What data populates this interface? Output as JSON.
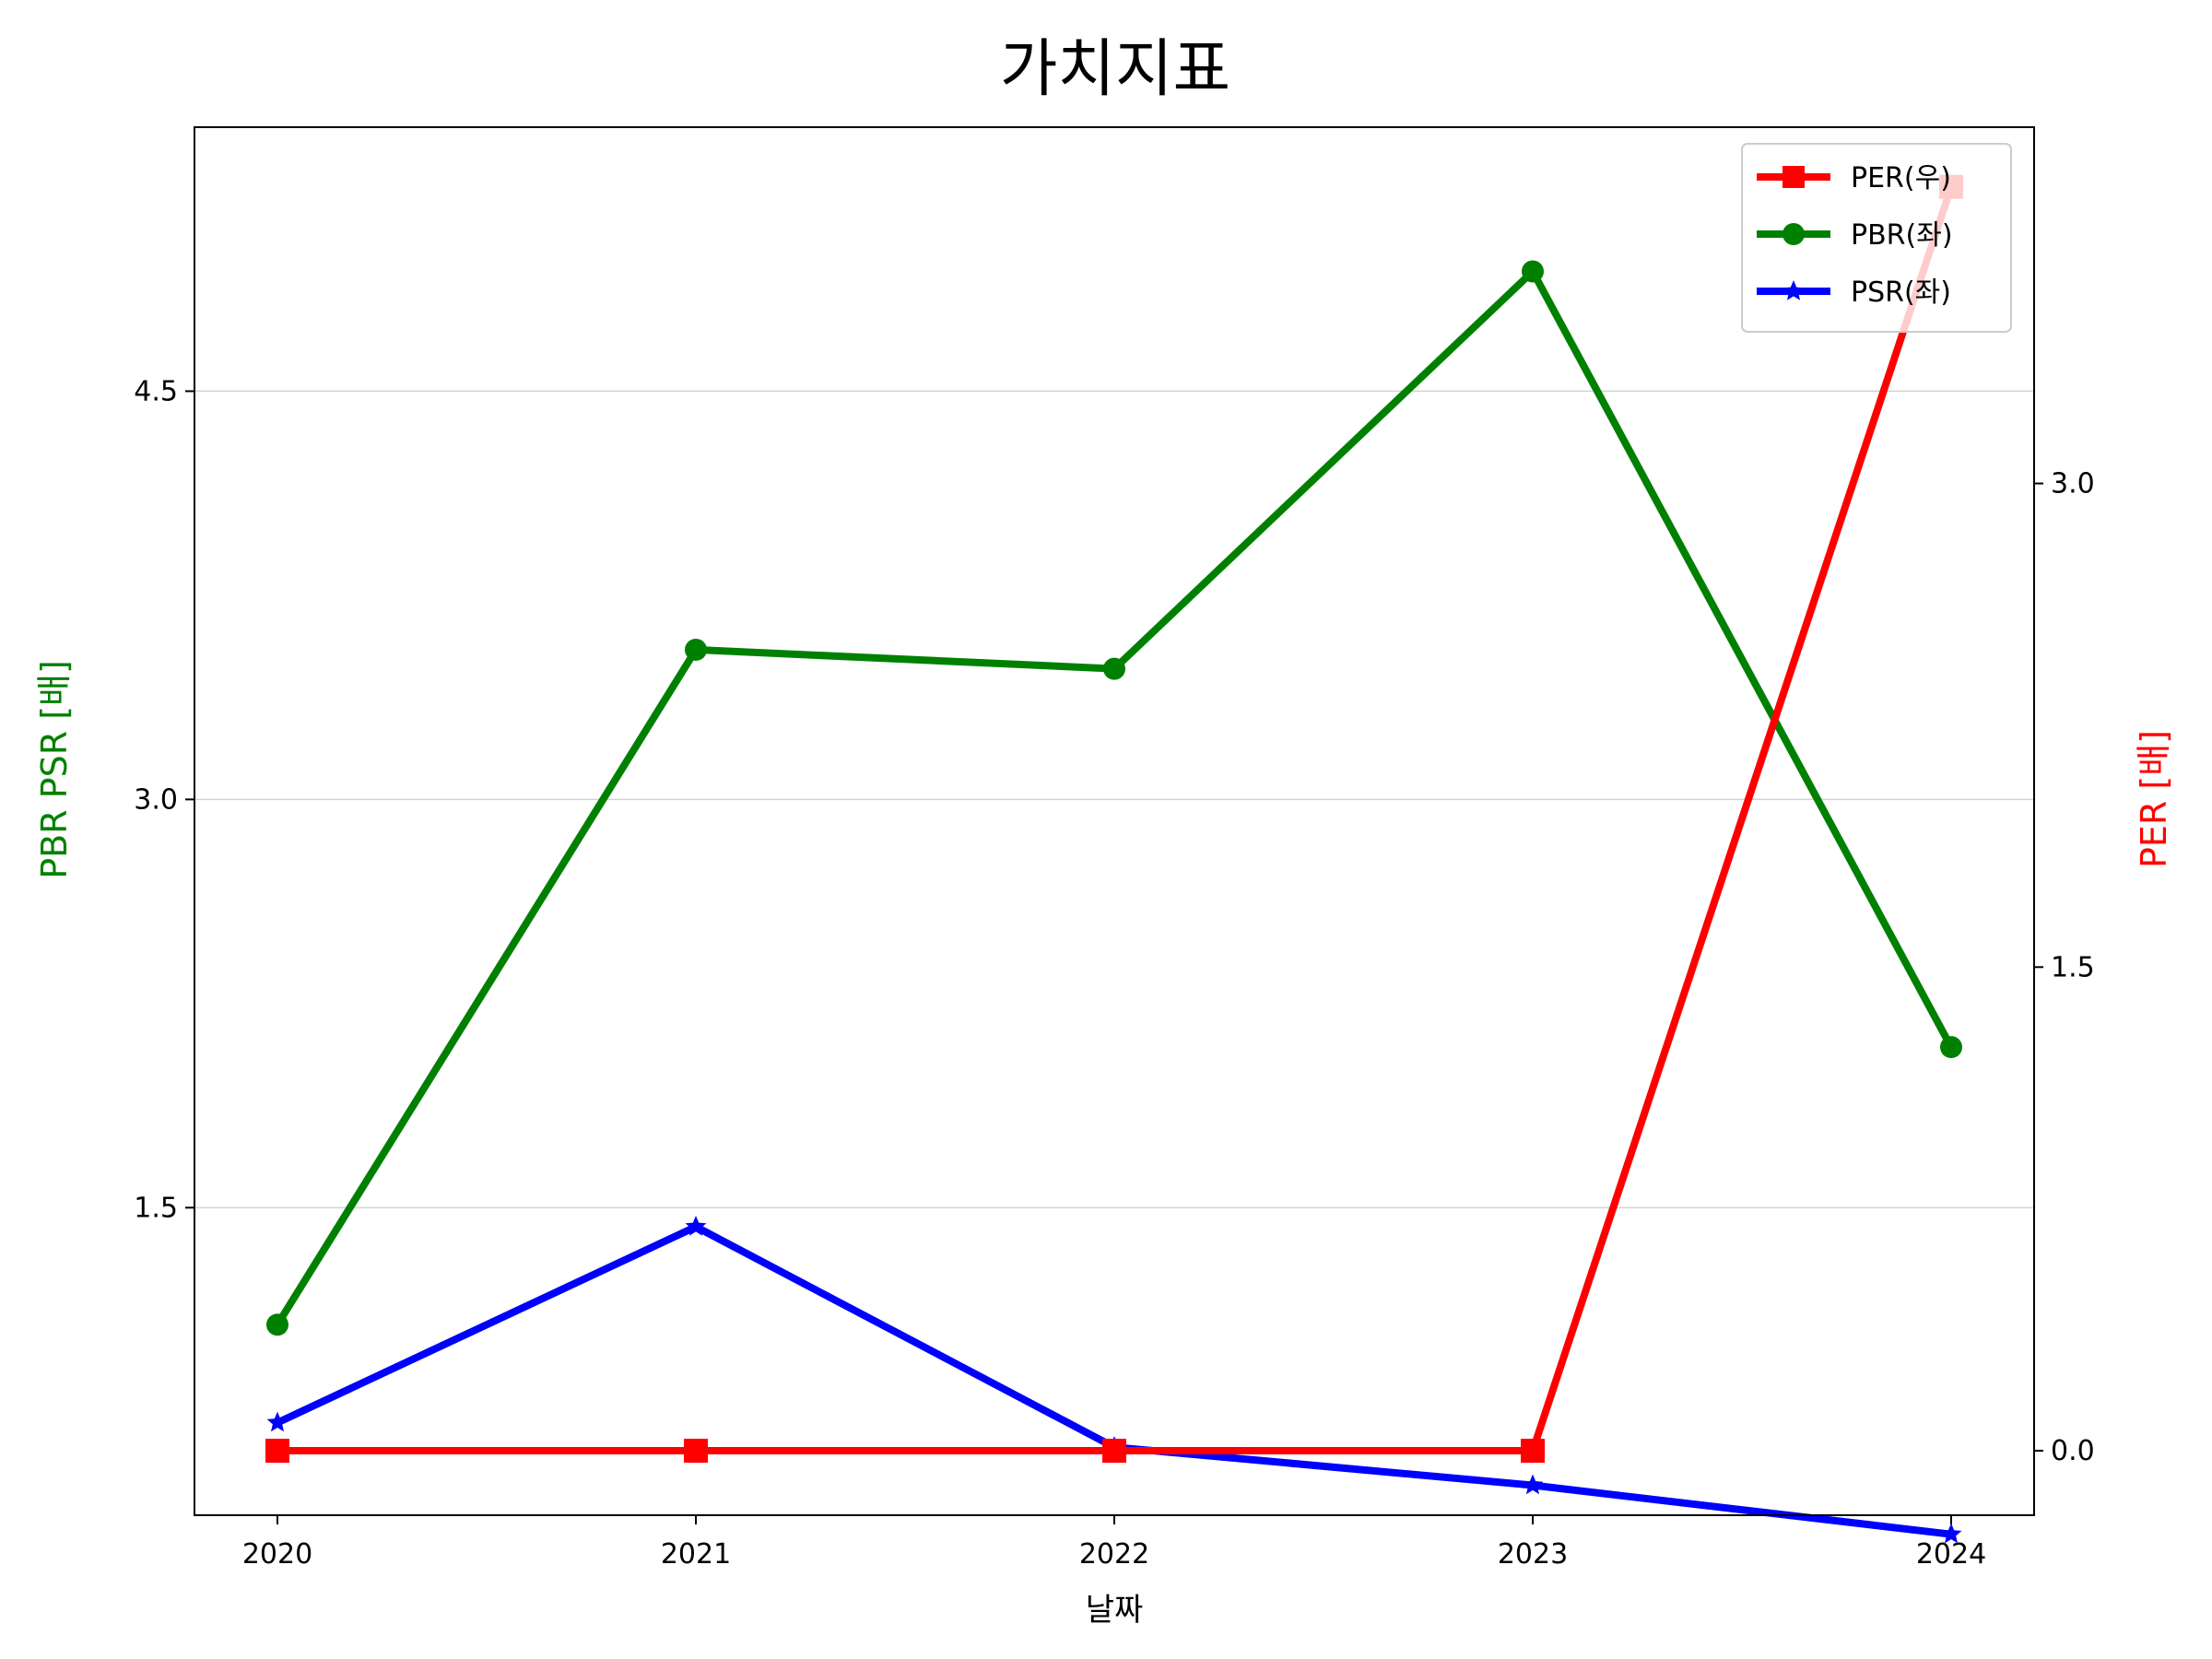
{
  "chart_data": {
    "type": "line",
    "title": "가치지표",
    "xlabel": "날짜",
    "ylabel_left": "PBR PSR [배]",
    "ylabel_right": "PER [배]",
    "x": [
      "2020",
      "2021",
      "2022",
      "2023",
      "2024"
    ],
    "left_axis": {
      "ticks": [
        "1.5",
        "3.0",
        "4.5"
      ],
      "tick_values": [
        1.5,
        3.0,
        4.5
      ],
      "ylim": [
        0.37,
        5.47
      ],
      "grid": true,
      "label_color": "#008000"
    },
    "right_axis": {
      "ticks": [
        "0.0",
        "1.5",
        "3.0"
      ],
      "tick_values": [
        0.0,
        1.5,
        3.0
      ],
      "ylim": [
        -0.2,
        4.105
      ],
      "label_color": "#ff0000"
    },
    "series": [
      {
        "name": "PER(우)",
        "axis": "right",
        "color": "#ff0000",
        "marker": "square",
        "values": [
          0.0,
          0.0,
          0.0,
          0.0,
          3.92
        ]
      },
      {
        "name": "PBR(좌)",
        "axis": "left",
        "color": "#008000",
        "marker": "circle",
        "values": [
          1.07,
          3.55,
          3.48,
          4.94,
          2.09
        ]
      },
      {
        "name": "PSR(좌)",
        "axis": "left",
        "color": "#0000ff",
        "marker": "star",
        "values": [
          0.71,
          1.43,
          0.62,
          0.48,
          0.3
        ]
      }
    ],
    "legend": {
      "position": "top-right",
      "entries": [
        "PER(우)",
        "PBR(좌)",
        "PSR(좌)"
      ]
    }
  }
}
